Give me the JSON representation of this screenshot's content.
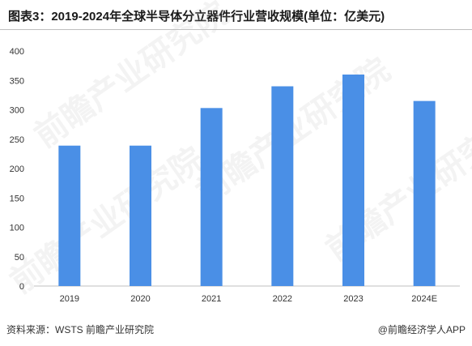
{
  "header": {
    "title": "图表3：2019-2024年全球半导体分立器件行业营收规模(单位：亿美元)"
  },
  "footer": {
    "source": "资料来源：WSTS 前瞻产业研究院",
    "credit": "@前瞻经济学人APP"
  },
  "watermark": {
    "text": "前瞻产业研究院"
  },
  "colors": {
    "bar": "#4a8fe6",
    "axis": "#bfbfbf",
    "tick_text": "#333333"
  },
  "chart_data": {
    "type": "bar",
    "title": "图表3：2019-2024年全球半导体分立器件行业营收规模(单位：亿美元)",
    "categories": [
      "2019",
      "2020",
      "2021",
      "2022",
      "2023",
      "2024E"
    ],
    "values": [
      239,
      239,
      303,
      340,
      360,
      315
    ],
    "xlabel": "",
    "ylabel": "",
    "ylim": [
      0,
      400
    ],
    "yticks": [
      "0",
      "50",
      "100",
      "150",
      "200",
      "250",
      "300",
      "350",
      "400"
    ],
    "grid": false,
    "legend": "none"
  }
}
